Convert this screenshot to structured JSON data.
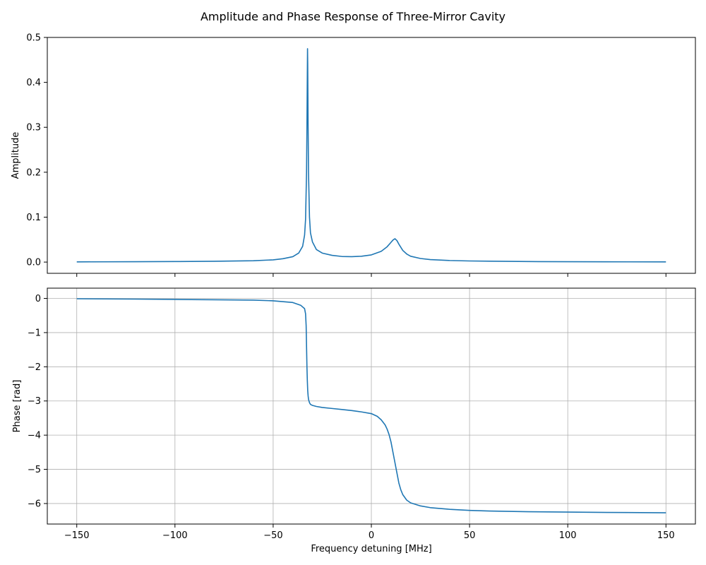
{
  "figure": {
    "title": "Amplitude and Phase Response of Three-Mirror Cavity"
  },
  "chart_data": [
    {
      "type": "line",
      "panel": "top",
      "xlabel": "",
      "ylabel": "Amplitude",
      "xlim": [
        -165,
        165
      ],
      "ylim": [
        -0.025,
        0.5
      ],
      "xticks": [
        -150,
        -100,
        -50,
        0,
        50,
        100,
        150
      ],
      "xtick_labels_visible": false,
      "yticks": [
        0.0,
        0.1,
        0.2,
        0.3,
        0.4,
        0.5
      ],
      "ytick_labels": [
        "0.0",
        "0.1",
        "0.2",
        "0.3",
        "0.4",
        "0.5"
      ],
      "grid": false,
      "color": "#1f77b4",
      "x": [
        -150,
        -120,
        -100,
        -80,
        -60,
        -50,
        -45,
        -40,
        -37,
        -35,
        -34,
        -33.5,
        -33,
        -32.8,
        -32.6,
        -32.5,
        -32.4,
        -32.2,
        -32,
        -31.5,
        -31,
        -30,
        -28,
        -25,
        -20,
        -15,
        -10,
        -5,
        0,
        5,
        8,
        10,
        11,
        12,
        13,
        14,
        16,
        18,
        20,
        25,
        30,
        40,
        50,
        60,
        80,
        100,
        120,
        150
      ],
      "y": [
        0.0005,
        0.0008,
        0.0012,
        0.0018,
        0.003,
        0.005,
        0.0075,
        0.012,
        0.02,
        0.035,
        0.06,
        0.095,
        0.2,
        0.3,
        0.42,
        0.475,
        0.44,
        0.3,
        0.2,
        0.1,
        0.065,
        0.045,
        0.028,
        0.02,
        0.015,
        0.0125,
        0.012,
        0.013,
        0.016,
        0.024,
        0.034,
        0.044,
        0.049,
        0.052,
        0.048,
        0.04,
        0.026,
        0.018,
        0.013,
        0.008,
        0.0055,
        0.0035,
        0.0025,
        0.002,
        0.0012,
        0.0008,
        0.0006,
        0.0004
      ]
    },
    {
      "type": "line",
      "panel": "bottom",
      "xlabel": "Frequency detuning [MHz]",
      "ylabel": "Phase [rad]",
      "xlim": [
        -165,
        165
      ],
      "ylim": [
        -6.6,
        0.3
      ],
      "xticks": [
        -150,
        -100,
        -50,
        0,
        50,
        100,
        150
      ],
      "xtick_labels": [
        "−150",
        "−100",
        "−50",
        "0",
        "50",
        "100",
        "150"
      ],
      "yticks": [
        0,
        -1,
        -2,
        -3,
        -4,
        -5,
        -6
      ],
      "ytick_labels": [
        "0",
        "−1",
        "−2",
        "−3",
        "−4",
        "−5",
        "−6"
      ],
      "grid": true,
      "color": "#1f77b4",
      "x": [
        -150,
        -120,
        -100,
        -80,
        -60,
        -50,
        -40,
        -36,
        -34,
        -33.5,
        -33.2,
        -33,
        -32.8,
        -32.6,
        -32.4,
        -32.2,
        -32,
        -31.5,
        -31,
        -30,
        -28,
        -25,
        -20,
        -15,
        -10,
        -5,
        0,
        3,
        5,
        7,
        8,
        9,
        10,
        11,
        12,
        13,
        14,
        15,
        16,
        18,
        20,
        25,
        30,
        40,
        50,
        60,
        80,
        100,
        120,
        150
      ],
      "y": [
        -0.01,
        -0.02,
        -0.03,
        -0.04,
        -0.05,
        -0.07,
        -0.12,
        -0.2,
        -0.3,
        -0.45,
        -0.8,
        -1.4,
        -2.0,
        -2.4,
        -2.7,
        -2.85,
        -2.95,
        -3.05,
        -3.1,
        -3.13,
        -3.16,
        -3.19,
        -3.22,
        -3.25,
        -3.28,
        -3.32,
        -3.37,
        -3.45,
        -3.55,
        -3.7,
        -3.82,
        -3.98,
        -4.2,
        -4.5,
        -4.8,
        -5.1,
        -5.4,
        -5.6,
        -5.74,
        -5.9,
        -5.98,
        -6.07,
        -6.12,
        -6.17,
        -6.2,
        -6.22,
        -6.24,
        -6.25,
        -6.26,
        -6.27
      ]
    }
  ]
}
